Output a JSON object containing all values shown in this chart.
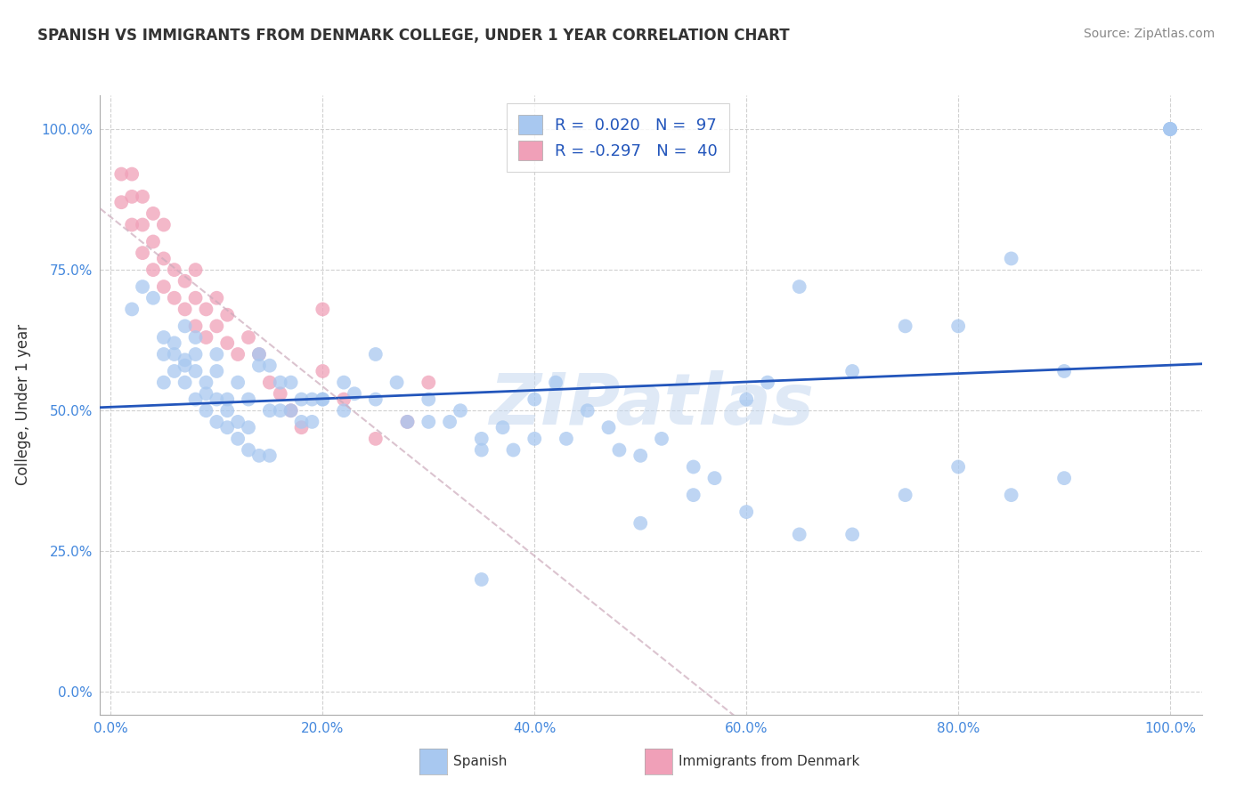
{
  "title": "SPANISH VS IMMIGRANTS FROM DENMARK COLLEGE, UNDER 1 YEAR CORRELATION CHART",
  "source": "Source: ZipAtlas.com",
  "ylabel": "College, Under 1 year",
  "x_tick_labels": [
    "0.0%",
    "20.0%",
    "40.0%",
    "60.0%",
    "80.0%",
    "100.0%"
  ],
  "y_tick_labels": [
    "0.0%",
    "25.0%",
    "50.0%",
    "75.0%",
    "100.0%"
  ],
  "x_tick_positions": [
    0.0,
    0.2,
    0.4,
    0.6,
    0.8,
    1.0
  ],
  "y_tick_positions": [
    0.0,
    0.25,
    0.5,
    0.75,
    1.0
  ],
  "legend_label1": "Spanish",
  "legend_label2": "Immigrants from Denmark",
  "R1": 0.02,
  "N1": 97,
  "R2": -0.297,
  "N2": 40,
  "blue_color": "#a8c8f0",
  "pink_color": "#f0a0b8",
  "blue_line_color": "#2255bb",
  "pink_line_color": "#cc6688",
  "grid_color": "#cccccc",
  "background_color": "#ffffff",
  "watermark": "ZIPatlas",
  "blue_points_x": [
    0.02,
    0.03,
    0.04,
    0.05,
    0.05,
    0.06,
    0.06,
    0.07,
    0.07,
    0.07,
    0.08,
    0.08,
    0.08,
    0.09,
    0.09,
    0.1,
    0.1,
    0.1,
    0.11,
    0.11,
    0.12,
    0.12,
    0.13,
    0.13,
    0.14,
    0.14,
    0.15,
    0.15,
    0.16,
    0.17,
    0.18,
    0.19,
    0.2,
    0.22,
    0.23,
    0.25,
    0.27,
    0.28,
    0.3,
    0.32,
    0.33,
    0.35,
    0.37,
    0.38,
    0.4,
    0.42,
    0.45,
    0.47,
    0.5,
    0.52,
    0.55,
    0.57,
    0.6,
    0.62,
    0.65,
    0.7,
    0.75,
    0.8,
    0.85,
    0.9,
    0.05,
    0.06,
    0.07,
    0.08,
    0.09,
    0.1,
    0.11,
    0.12,
    0.13,
    0.14,
    0.15,
    0.16,
    0.17,
    0.18,
    0.19,
    0.2,
    0.22,
    0.25,
    0.3,
    0.35,
    0.4,
    0.43,
    0.48,
    0.55,
    0.6,
    0.7,
    0.75,
    0.8,
    0.85,
    0.9,
    1.0,
    1.0,
    1.0,
    1.0,
    0.5,
    0.65,
    0.35
  ],
  "blue_points_y": [
    0.68,
    0.72,
    0.7,
    0.63,
    0.6,
    0.57,
    0.62,
    0.55,
    0.59,
    0.65,
    0.52,
    0.57,
    0.6,
    0.5,
    0.53,
    0.48,
    0.52,
    0.57,
    0.47,
    0.5,
    0.45,
    0.48,
    0.43,
    0.47,
    0.42,
    0.58,
    0.58,
    0.42,
    0.5,
    0.55,
    0.48,
    0.52,
    0.52,
    0.5,
    0.53,
    0.6,
    0.55,
    0.48,
    0.52,
    0.48,
    0.5,
    0.45,
    0.47,
    0.43,
    0.52,
    0.55,
    0.5,
    0.47,
    0.42,
    0.45,
    0.4,
    0.38,
    0.52,
    0.55,
    0.72,
    0.57,
    0.65,
    0.65,
    0.77,
    0.57,
    0.55,
    0.6,
    0.58,
    0.63,
    0.55,
    0.6,
    0.52,
    0.55,
    0.52,
    0.6,
    0.5,
    0.55,
    0.5,
    0.52,
    0.48,
    0.52,
    0.55,
    0.52,
    0.48,
    0.43,
    0.45,
    0.45,
    0.43,
    0.35,
    0.32,
    0.28,
    0.35,
    0.4,
    0.35,
    0.38,
    1.0,
    1.0,
    1.0,
    1.0,
    0.3,
    0.28,
    0.2
  ],
  "pink_points_x": [
    0.01,
    0.01,
    0.02,
    0.02,
    0.02,
    0.03,
    0.03,
    0.03,
    0.04,
    0.04,
    0.04,
    0.05,
    0.05,
    0.05,
    0.06,
    0.06,
    0.07,
    0.07,
    0.08,
    0.08,
    0.08,
    0.09,
    0.09,
    0.1,
    0.1,
    0.11,
    0.11,
    0.12,
    0.13,
    0.14,
    0.15,
    0.16,
    0.17,
    0.18,
    0.2,
    0.22,
    0.25,
    0.28,
    0.3,
    0.2
  ],
  "pink_points_y": [
    0.87,
    0.92,
    0.83,
    0.88,
    0.92,
    0.78,
    0.83,
    0.88,
    0.75,
    0.8,
    0.85,
    0.72,
    0.77,
    0.83,
    0.7,
    0.75,
    0.68,
    0.73,
    0.65,
    0.7,
    0.75,
    0.63,
    0.68,
    0.65,
    0.7,
    0.62,
    0.67,
    0.6,
    0.63,
    0.6,
    0.55,
    0.53,
    0.5,
    0.47,
    0.57,
    0.52,
    0.45,
    0.48,
    0.55,
    0.68
  ]
}
